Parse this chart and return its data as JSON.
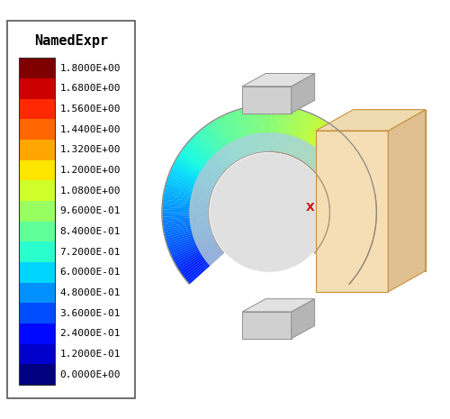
{
  "title": "NamedExpr",
  "colorbar_labels": [
    "1.8000E+00",
    "1.6800E+00",
    "1.5600E+00",
    "1.4400E+00",
    "1.3200E+00",
    "1.2000E+00",
    "1.0800E+00",
    "9.6000E-01",
    "8.4000E-01",
    "7.2000E-01",
    "6.0000E-01",
    "4.8000E-01",
    "3.6000E-01",
    "2.4000E-01",
    "1.2000E-01",
    "0.0000E+00"
  ],
  "vmin": 0.0,
  "vmax": 1.8,
  "background_color": "#ffffff",
  "colormap": "jet",
  "figure_width": 5.0,
  "figure_height": 4.65,
  "dpi": 100,
  "title_fontsize": 11,
  "label_fontsize": 8.0,
  "axis_x_color": "#cc1111",
  "axis_y_color": "#117711",
  "axis_z_color": "#1111cc"
}
